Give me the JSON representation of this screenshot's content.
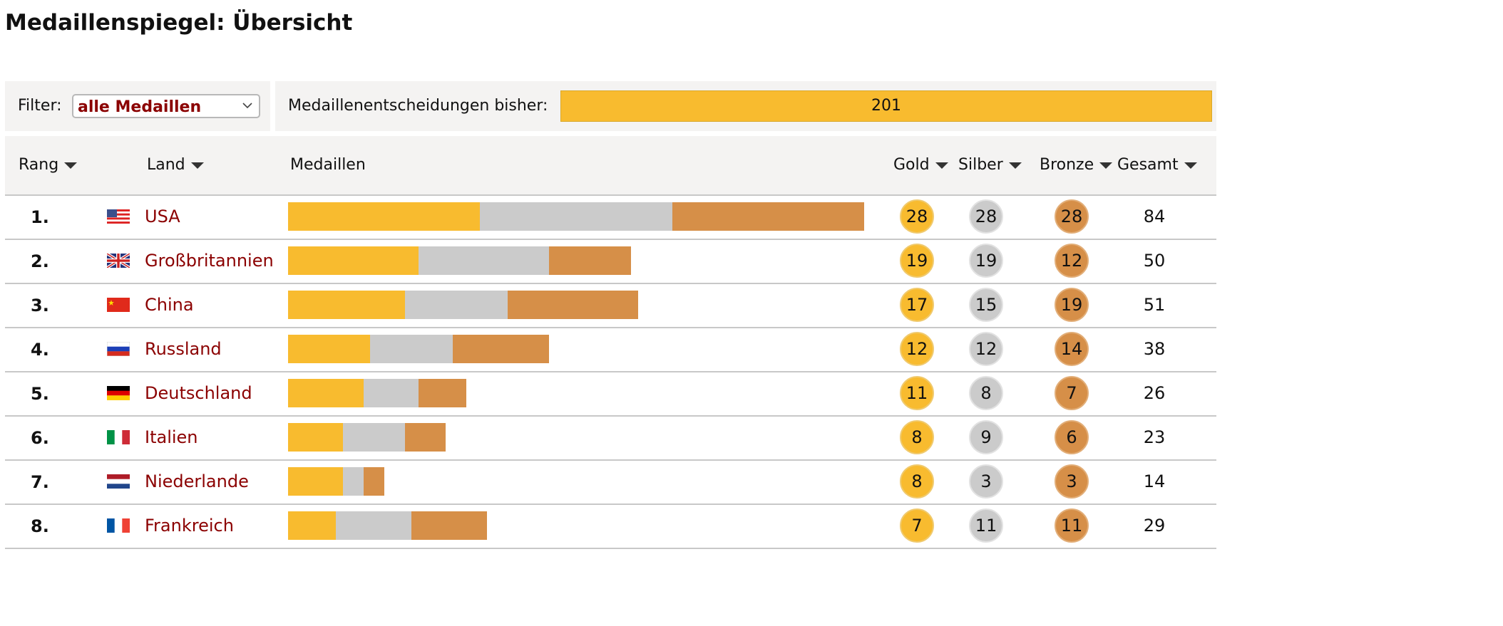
{
  "page": {
    "title": "Medaillenspiegel: Übersicht"
  },
  "filter": {
    "label": "Filter:",
    "selected": "alle Medaillen"
  },
  "summary": {
    "label": "Medaillenentscheidungen bisher:",
    "value": "201"
  },
  "table": {
    "headers": {
      "rank": "Rang",
      "country": "Land",
      "medals": "Medaillen",
      "gold": "Gold",
      "silver": "Silber",
      "bronze": "Bronze",
      "total": "Gesamt"
    },
    "rows": [
      {
        "rank": "1.",
        "country": "USA",
        "flag": "us-flag-icon",
        "gold": 28,
        "silver": 28,
        "bronze": 28,
        "total": 84
      },
      {
        "rank": "2.",
        "country": "Großbritannien",
        "flag": "gb-flag-icon",
        "gold": 19,
        "silver": 19,
        "bronze": 12,
        "total": 50
      },
      {
        "rank": "3.",
        "country": "China",
        "flag": "cn-flag-icon",
        "gold": 17,
        "silver": 15,
        "bronze": 19,
        "total": 51
      },
      {
        "rank": "4.",
        "country": "Russland",
        "flag": "ru-flag-icon",
        "gold": 12,
        "silver": 12,
        "bronze": 14,
        "total": 38
      },
      {
        "rank": "5.",
        "country": "Deutschland",
        "flag": "de-flag-icon",
        "gold": 11,
        "silver": 8,
        "bronze": 7,
        "total": 26
      },
      {
        "rank": "6.",
        "country": "Italien",
        "flag": "it-flag-icon",
        "gold": 8,
        "silver": 9,
        "bronze": 6,
        "total": 23
      },
      {
        "rank": "7.",
        "country": "Niederlande",
        "flag": "nl-flag-icon",
        "gold": 8,
        "silver": 3,
        "bronze": 3,
        "total": 14
      },
      {
        "rank": "8.",
        "country": "Frankreich",
        "flag": "fr-flag-icon",
        "gold": 7,
        "silver": 11,
        "bronze": 11,
        "total": 29
      }
    ]
  },
  "colors": {
    "gold": "#f8bb2f",
    "silver": "#cbcbcb",
    "bronze": "#d68f48",
    "link": "#8b0000",
    "panel": "#f4f3f2"
  }
}
